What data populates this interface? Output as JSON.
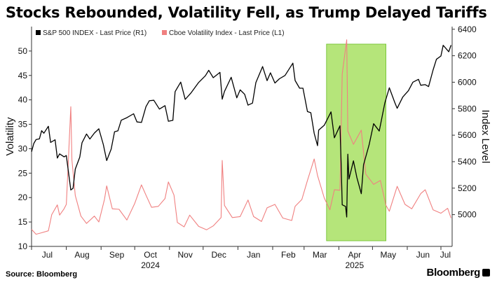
{
  "title": "Stocks Rebounded, Volatility Fell, as Trump Delayed Tariffs",
  "footer": {
    "source": "Source: Bloomberg",
    "brand": "Bloomberg"
  },
  "chart_data": {
    "type": "line",
    "title": "Stocks Rebounded, Volatility Fell, as Trump Delayed Tariffs",
    "x_axis": {
      "start": "2024-07-01",
      "end": "2025-07-11",
      "tick_labels": [
        {
          "date": "2024-07-15",
          "label": "Jul"
        },
        {
          "date": "2024-08-15",
          "label": "Aug"
        },
        {
          "date": "2024-09-15",
          "label": "Sep"
        },
        {
          "date": "2024-10-15",
          "label": "Oct"
        },
        {
          "date": "2024-11-15",
          "label": "Nov"
        },
        {
          "date": "2024-12-15",
          "label": "Dec"
        },
        {
          "date": "2025-01-15",
          "label": "Jan"
        },
        {
          "date": "2025-02-15",
          "label": "Feb"
        },
        {
          "date": "2025-03-15",
          "label": "Mar"
        },
        {
          "date": "2025-04-15",
          "label": "Apr"
        },
        {
          "date": "2025-05-15",
          "label": "May"
        },
        {
          "date": "2025-06-15",
          "label": "Jun"
        },
        {
          "date": "2025-07-05",
          "label": "Jul"
        }
      ],
      "year_labels": [
        {
          "date": "2024-10-15",
          "label": "2024"
        },
        {
          "date": "2025-04-15",
          "label": "2025"
        }
      ]
    },
    "y_axis_left": {
      "label": "Volatility",
      "min": 10,
      "max": 55,
      "ticks": [
        10,
        15,
        20,
        25,
        30,
        35,
        40,
        45,
        50
      ]
    },
    "y_axis_right": {
      "label": "Index Level",
      "min": 4760,
      "max": 6420,
      "ticks": [
        5000,
        5200,
        5400,
        5600,
        5800,
        6000,
        6200,
        6400
      ]
    },
    "highlight": {
      "start": "2025-03-21",
      "end": "2025-05-13",
      "color": "#a8e063"
    },
    "legend": {
      "position": "top-left"
    },
    "series": [
      {
        "name": "S&P 500 INDEX - Last Price (R1)",
        "axis": "right",
        "color": "#000000",
        "x": [
          "2024-07-01",
          "2024-07-03",
          "2024-07-05",
          "2024-07-08",
          "2024-07-10",
          "2024-07-12",
          "2024-07-16",
          "2024-07-18",
          "2024-07-22",
          "2024-07-24",
          "2024-07-26",
          "2024-07-30",
          "2024-08-01",
          "2024-08-05",
          "2024-08-07",
          "2024-08-09",
          "2024-08-13",
          "2024-08-15",
          "2024-08-19",
          "2024-08-22",
          "2024-08-26",
          "2024-08-30",
          "2024-09-03",
          "2024-09-06",
          "2024-09-10",
          "2024-09-13",
          "2024-09-16",
          "2024-09-19",
          "2024-09-24",
          "2024-09-30",
          "2024-10-03",
          "2024-10-07",
          "2024-10-11",
          "2024-10-14",
          "2024-10-18",
          "2024-10-23",
          "2024-10-28",
          "2024-10-31",
          "2024-11-04",
          "2024-11-06",
          "2024-11-11",
          "2024-11-15",
          "2024-11-20",
          "2024-11-27",
          "2024-12-03",
          "2024-12-06",
          "2024-12-10",
          "2024-12-16",
          "2024-12-18",
          "2024-12-20",
          "2024-12-26",
          "2024-12-31",
          "2025-01-03",
          "2025-01-07",
          "2025-01-10",
          "2025-01-14",
          "2025-01-17",
          "2025-01-23",
          "2025-01-27",
          "2025-01-30",
          "2025-02-03",
          "2025-02-07",
          "2025-02-12",
          "2025-02-19",
          "2025-02-21",
          "2025-02-25",
          "2025-02-28",
          "2025-03-04",
          "2025-03-07",
          "2025-03-10",
          "2025-03-13",
          "2025-03-14",
          "2025-03-19",
          "2025-03-25",
          "2025-03-28",
          "2025-04-02",
          "2025-04-03",
          "2025-04-04",
          "2025-04-07",
          "2025-04-08",
          "2025-04-09",
          "2025-04-10",
          "2025-04-14",
          "2025-04-17",
          "2025-04-21",
          "2025-04-23",
          "2025-04-28",
          "2025-05-02",
          "2025-05-07",
          "2025-05-12",
          "2025-05-16",
          "2025-05-21",
          "2025-05-23",
          "2025-05-28",
          "2025-06-02",
          "2025-06-06",
          "2025-06-11",
          "2025-06-13",
          "2025-06-17",
          "2025-06-20",
          "2025-06-24",
          "2025-06-27",
          "2025-07-01",
          "2025-07-03",
          "2025-07-08",
          "2025-07-10"
        ],
        "y": [
          5475,
          5537,
          5567,
          5572,
          5634,
          5615,
          5667,
          5545,
          5565,
          5427,
          5459,
          5436,
          5446,
          5186,
          5199,
          5344,
          5434,
          5543,
          5609,
          5571,
          5616,
          5648,
          5529,
          5408,
          5495,
          5626,
          5633,
          5713,
          5732,
          5762,
          5700,
          5696,
          5815,
          5860,
          5864,
          5797,
          5823,
          5705,
          5712,
          5929,
          6001,
          5870,
          5917,
          5998,
          6049,
          6090,
          6034,
          6074,
          5872,
          5930,
          6037,
          5882,
          5942,
          5909,
          5827,
          5842,
          5997,
          6118,
          6012,
          6071,
          5994,
          6026,
          6051,
          6144,
          6013,
          5955,
          5955,
          5778,
          5770,
          5614,
          5521,
          5638,
          5675,
          5776,
          5580,
          5671,
          5396,
          5074,
          5062,
          4982,
          5456,
          5268,
          5406,
          5282,
          5158,
          5376,
          5528,
          5687,
          5631,
          5844,
          5958,
          5844,
          5803,
          5888,
          5936,
          6000,
          6022,
          5977,
          5982,
          5967,
          6092,
          6173,
          6198,
          6279,
          6230,
          6280
        ]
      },
      {
        "name": "Cboe Volatility Index - Last Price (L1)",
        "axis": "left",
        "color": "#f08080",
        "x": [
          "2024-07-01",
          "2024-07-05",
          "2024-07-10",
          "2024-07-16",
          "2024-07-19",
          "2024-07-24",
          "2024-07-26",
          "2024-07-30",
          "2024-08-01",
          "2024-08-02",
          "2024-08-05",
          "2024-08-06",
          "2024-08-09",
          "2024-08-14",
          "2024-08-19",
          "2024-08-26",
          "2024-08-30",
          "2024-09-04",
          "2024-09-06",
          "2024-09-11",
          "2024-09-17",
          "2024-09-24",
          "2024-10-01",
          "2024-10-07",
          "2024-10-11",
          "2024-10-16",
          "2024-10-22",
          "2024-10-28",
          "2024-10-31",
          "2024-11-05",
          "2024-11-08",
          "2024-11-14",
          "2024-11-19",
          "2024-11-27",
          "2024-12-04",
          "2024-12-10",
          "2024-12-17",
          "2024-12-18",
          "2024-12-20",
          "2024-12-27",
          "2025-01-03",
          "2025-01-10",
          "2025-01-15",
          "2025-01-22",
          "2025-01-27",
          "2025-02-03",
          "2025-02-10",
          "2025-02-18",
          "2025-02-21",
          "2025-02-27",
          "2025-03-04",
          "2025-03-10",
          "2025-03-13",
          "2025-03-19",
          "2025-03-24",
          "2025-03-28",
          "2025-04-02",
          "2025-04-04",
          "2025-04-08",
          "2025-04-09",
          "2025-04-14",
          "2025-04-21",
          "2025-04-25",
          "2025-05-02",
          "2025-05-08",
          "2025-05-13",
          "2025-05-16",
          "2025-05-23",
          "2025-05-30",
          "2025-06-05",
          "2025-06-13",
          "2025-06-17",
          "2025-06-24",
          "2025-07-01",
          "2025-07-07",
          "2025-07-10"
        ],
        "y": [
          13.5,
          12.5,
          12.8,
          13.2,
          16.5,
          18.5,
          16.4,
          17.7,
          18.6,
          23.4,
          38.6,
          27.7,
          20.4,
          16.2,
          14.7,
          16.2,
          15.0,
          19.6,
          22.4,
          17.7,
          17.6,
          15.4,
          18.8,
          22.6,
          20.5,
          18.0,
          18.2,
          19.8,
          23.2,
          20.5,
          14.9,
          14.0,
          16.4,
          14.1,
          13.4,
          14.2,
          15.9,
          27.6,
          18.4,
          15.9,
          16.1,
          19.5,
          16.1,
          15.1,
          17.9,
          18.6,
          15.8,
          15.3,
          18.2,
          19.6,
          23.5,
          27.9,
          24.5,
          19.9,
          17.5,
          21.6,
          21.5,
          45.3,
          52.3,
          33.6,
          30.9,
          33.8,
          24.8,
          22.7,
          23.5,
          18.4,
          17.2,
          22.3,
          18.6,
          17.7,
          20.8,
          21.6,
          17.5,
          16.8,
          17.8,
          15.8
        ]
      }
    ]
  }
}
